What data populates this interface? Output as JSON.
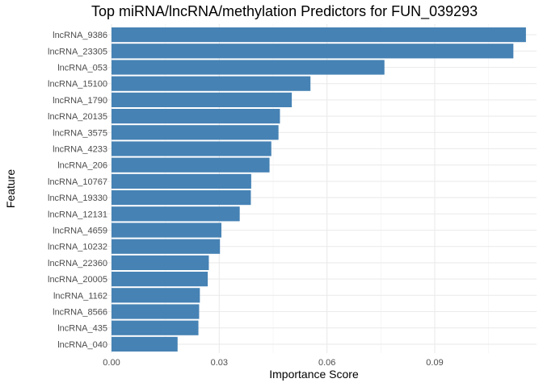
{
  "chart_data": {
    "type": "bar",
    "orientation": "horizontal",
    "title": "Top miRNA/lncRNA/methylation Predictors for FUN_039293",
    "xlabel": "Importance Score",
    "ylabel": "Feature",
    "categories": [
      "lncRNA_9386",
      "lncRNA_23305",
      "lncRNA_053",
      "lncRNA_15100",
      "lncRNA_1790",
      "lncRNA_20135",
      "lncRNA_3575",
      "lncRNA_4233",
      "lncRNA_206",
      "lncRNA_10767",
      "lncRNA_19330",
      "lncRNA_12131",
      "lncRNA_4659",
      "lncRNA_10232",
      "lncRNA_22360",
      "lncRNA_20005",
      "lncRNA_1162",
      "lncRNA_8566",
      "lncRNA_435",
      "lncRNA_040"
    ],
    "values": [
      0.1154,
      0.1119,
      0.076,
      0.0554,
      0.0502,
      0.0469,
      0.0465,
      0.0445,
      0.044,
      0.0389,
      0.0388,
      0.0357,
      0.0306,
      0.0302,
      0.0271,
      0.0268,
      0.0246,
      0.0244,
      0.0242,
      0.0184
    ],
    "xticks": [
      "0.00",
      "0.03",
      "0.06",
      "0.09"
    ],
    "xtick_values": [
      0,
      0.03,
      0.06,
      0.09
    ],
    "xlim": [
      -0.0058,
      0.1212
    ],
    "bar_color": "#4682B4",
    "grid": true
  }
}
